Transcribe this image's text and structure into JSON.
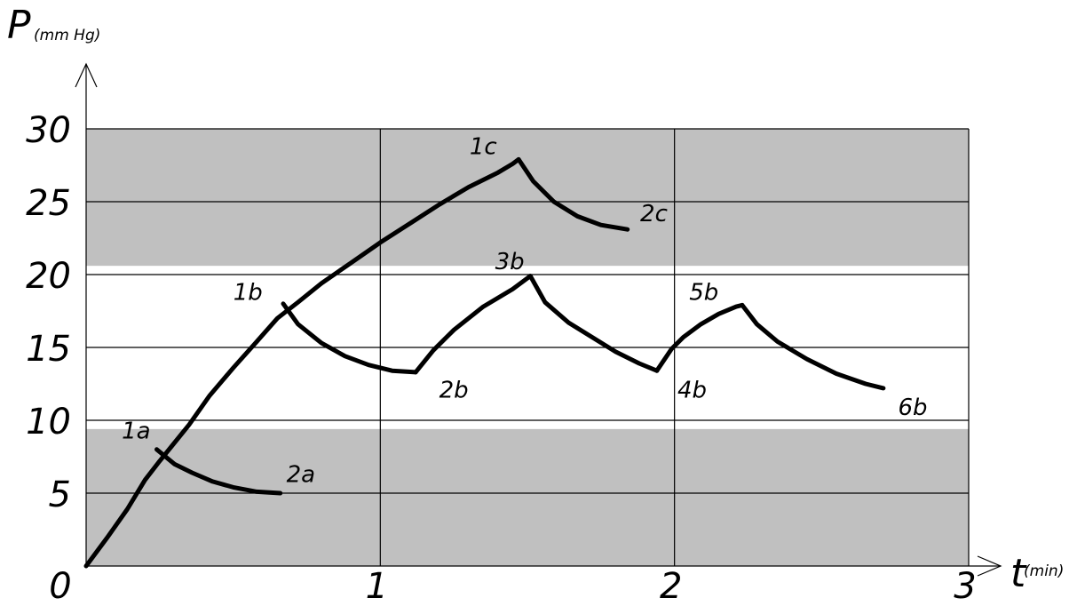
{
  "chart_data": {
    "type": "line",
    "title": "",
    "ylabel": "P",
    "ylabel_unit": "(mm Hg)",
    "xlabel": "t",
    "xlabel_unit": "(min)",
    "xlim": [
      0,
      3
    ],
    "ylim": [
      0,
      30
    ],
    "x_ticks": [
      {
        "v": 0,
        "label": "0"
      },
      {
        "v": 1,
        "label": "1"
      },
      {
        "v": 2,
        "label": "2"
      },
      {
        "v": 3,
        "label": "3"
      }
    ],
    "y_ticks": [
      {
        "v": 0,
        "label": ""
      },
      {
        "v": 5,
        "label": "5"
      },
      {
        "v": 10,
        "label": "10"
      },
      {
        "v": 15,
        "label": "15"
      },
      {
        "v": 20,
        "label": "20"
      },
      {
        "v": 25,
        "label": "25"
      },
      {
        "v": 30,
        "label": "30"
      }
    ],
    "grid": true,
    "bands": [
      {
        "y0": 0,
        "y1": 9.4,
        "color": "#c0c0c0"
      },
      {
        "y0": 20.6,
        "y1": 30,
        "color": "#c0c0c0"
      }
    ],
    "curve_color": "#000000",
    "series": [
      {
        "points": [
          [
            0,
            0
          ],
          [
            0.07,
            1.9
          ],
          [
            0.14,
            3.9
          ],
          [
            0.2,
            5.9
          ],
          [
            0.25,
            7.2
          ],
          [
            0.29,
            8.2
          ],
          [
            0.35,
            9.7
          ],
          [
            0.42,
            11.7
          ],
          [
            0.5,
            13.6
          ],
          [
            0.58,
            15.4
          ],
          [
            0.65,
            17.0
          ],
          [
            0.72,
            18.1
          ],
          [
            0.8,
            19.4
          ],
          [
            0.9,
            20.8
          ],
          [
            1.0,
            22.2
          ],
          [
            1.1,
            23.5
          ],
          [
            1.2,
            24.8
          ],
          [
            1.3,
            26.0
          ],
          [
            1.4,
            27.0
          ],
          [
            1.45,
            27.6
          ],
          [
            1.47,
            27.9
          ]
        ]
      },
      {
        "points": [
          [
            0.24,
            8.0
          ],
          [
            0.3,
            7.0
          ],
          [
            0.36,
            6.4
          ],
          [
            0.43,
            5.8
          ],
          [
            0.5,
            5.4
          ],
          [
            0.58,
            5.1
          ],
          [
            0.66,
            5.0
          ]
        ]
      },
      {
        "points": [
          [
            0.67,
            18.0
          ],
          [
            0.72,
            16.6
          ],
          [
            0.8,
            15.3
          ],
          [
            0.88,
            14.4
          ],
          [
            0.96,
            13.8
          ],
          [
            1.04,
            13.4
          ],
          [
            1.12,
            13.3
          ]
        ]
      },
      {
        "points": [
          [
            1.12,
            13.3
          ],
          [
            1.18,
            14.8
          ],
          [
            1.25,
            16.2
          ],
          [
            1.35,
            17.8
          ],
          [
            1.45,
            19.0
          ],
          [
            1.51,
            19.9
          ]
        ]
      },
      {
        "points": [
          [
            1.51,
            19.9
          ],
          [
            1.56,
            18.1
          ],
          [
            1.64,
            16.7
          ],
          [
            1.72,
            15.7
          ],
          [
            1.8,
            14.7
          ],
          [
            1.88,
            13.9
          ],
          [
            1.94,
            13.4
          ]
        ]
      },
      {
        "points": [
          [
            1.94,
            13.4
          ],
          [
            1.99,
            14.9
          ],
          [
            2.03,
            15.7
          ],
          [
            2.09,
            16.6
          ],
          [
            2.15,
            17.3
          ],
          [
            2.21,
            17.8
          ],
          [
            2.23,
            17.9
          ]
        ]
      },
      {
        "points": [
          [
            2.23,
            17.9
          ],
          [
            2.28,
            16.6
          ],
          [
            2.35,
            15.4
          ],
          [
            2.45,
            14.2
          ],
          [
            2.55,
            13.2
          ],
          [
            2.65,
            12.5
          ],
          [
            2.71,
            12.2
          ]
        ]
      },
      {
        "points": [
          [
            1.47,
            27.9
          ],
          [
            1.52,
            26.4
          ],
          [
            1.59,
            25.0
          ],
          [
            1.67,
            24.0
          ],
          [
            1.75,
            23.4
          ],
          [
            1.84,
            23.1
          ]
        ]
      }
    ],
    "annotations": [
      {
        "text": "1a",
        "x": 0.17,
        "y": 9.3
      },
      {
        "text": "2a",
        "x": 0.73,
        "y": 6.3
      },
      {
        "text": "1b",
        "x": 0.55,
        "y": 18.8
      },
      {
        "text": "2b",
        "x": 1.25,
        "y": 12.1
      },
      {
        "text": "3b",
        "x": 1.44,
        "y": 20.9
      },
      {
        "text": "4b",
        "x": 2.06,
        "y": 12.1
      },
      {
        "text": "5b",
        "x": 2.1,
        "y": 18.8
      },
      {
        "text": "6b",
        "x": 2.81,
        "y": 10.9
      },
      {
        "text": "1c",
        "x": 1.35,
        "y": 28.8
      },
      {
        "text": "2c",
        "x": 1.93,
        "y": 24.2
      }
    ]
  }
}
